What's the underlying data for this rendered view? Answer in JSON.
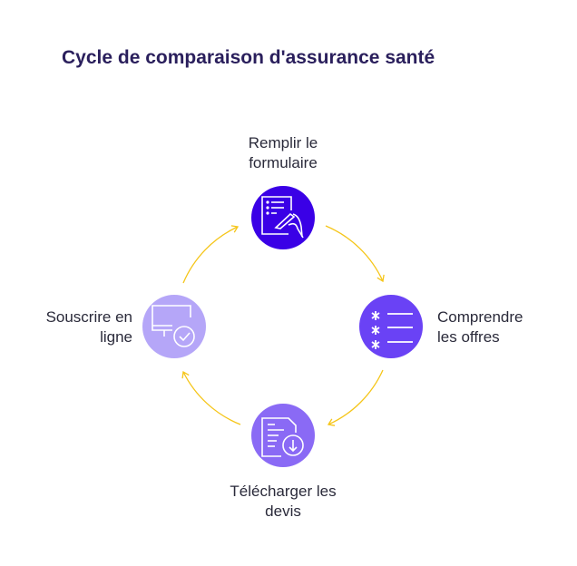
{
  "title": "Cycle de comparaison d'assurance santé",
  "steps": [
    {
      "label_line1": "Remplir le",
      "label_line2": "formulaire",
      "icon": "form-pen-icon",
      "color": "#3a00e6"
    },
    {
      "label_line1": "Comprendre",
      "label_line2": "les offres",
      "icon": "list-icon",
      "color": "#6a42f5"
    },
    {
      "label_line1": "Télécharger les",
      "label_line2": "devis",
      "icon": "document-download-icon",
      "color": "#8a6af5"
    },
    {
      "label_line1": "Souscrire en",
      "label_line2": "ligne",
      "icon": "monitor-check-icon",
      "color": "#b5a6f8"
    }
  ],
  "arrow_color": "#f5c518"
}
